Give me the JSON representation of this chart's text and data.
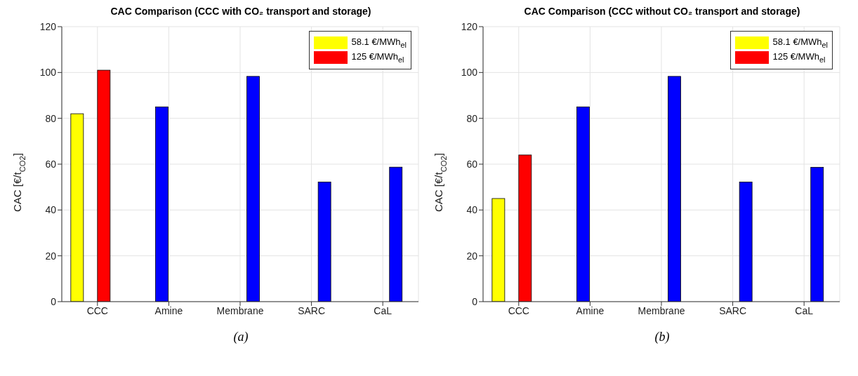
{
  "chart_data": [
    {
      "type": "bar",
      "title": "CAC Comparison (CCC with CO₂ transport and storage)",
      "ylabel": "CAC [€/t$_{CO2}$]",
      "categories": [
        "CCC",
        "Amine",
        "Membrane",
        "SARC",
        "CaL"
      ],
      "series": [
        {
          "name": "58.1 €/MWh$_{el}$",
          "color": "#ffff00",
          "values": [
            82,
            null,
            null,
            null,
            null
          ]
        },
        {
          "name": "125 €/MWh$_{el}$",
          "color": "#ff0000",
          "values": [
            101,
            null,
            null,
            null,
            null
          ]
        },
        {
          "color": "#0000ff",
          "values": [
            null,
            85,
            98.3,
            52.2,
            58.7
          ]
        }
      ],
      "ylim": [
        0,
        120
      ],
      "yticks": [
        0,
        20,
        40,
        60,
        80,
        100,
        120
      ],
      "grid": true,
      "legend": "top right",
      "annotations": [
        "(a)"
      ]
    },
    {
      "type": "bar",
      "title": "CAC Comparison (CCC without CO₂ transport and storage)",
      "ylabel": "CAC [€/t$_{CO2}$]",
      "categories": [
        "CCC",
        "Amine",
        "Membrane",
        "SARC",
        "CaL"
      ],
      "series": [
        {
          "name": "58.1 €/MWh$_{el}$",
          "color": "#ffff00",
          "values": [
            45,
            null,
            null,
            null,
            null
          ]
        },
        {
          "name": "125 €/MWh$_{el}$",
          "color": "#ff0000",
          "values": [
            64,
            null,
            null,
            null,
            null
          ]
        },
        {
          "color": "#0000ff",
          "values": [
            null,
            85,
            98.3,
            52.2,
            58.6
          ]
        }
      ],
      "ylim": [
        0,
        120
      ],
      "yticks": [
        0,
        20,
        40,
        60,
        80,
        100,
        120
      ],
      "grid": true,
      "legend": "top right",
      "annotations": [
        "(b)"
      ]
    }
  ]
}
